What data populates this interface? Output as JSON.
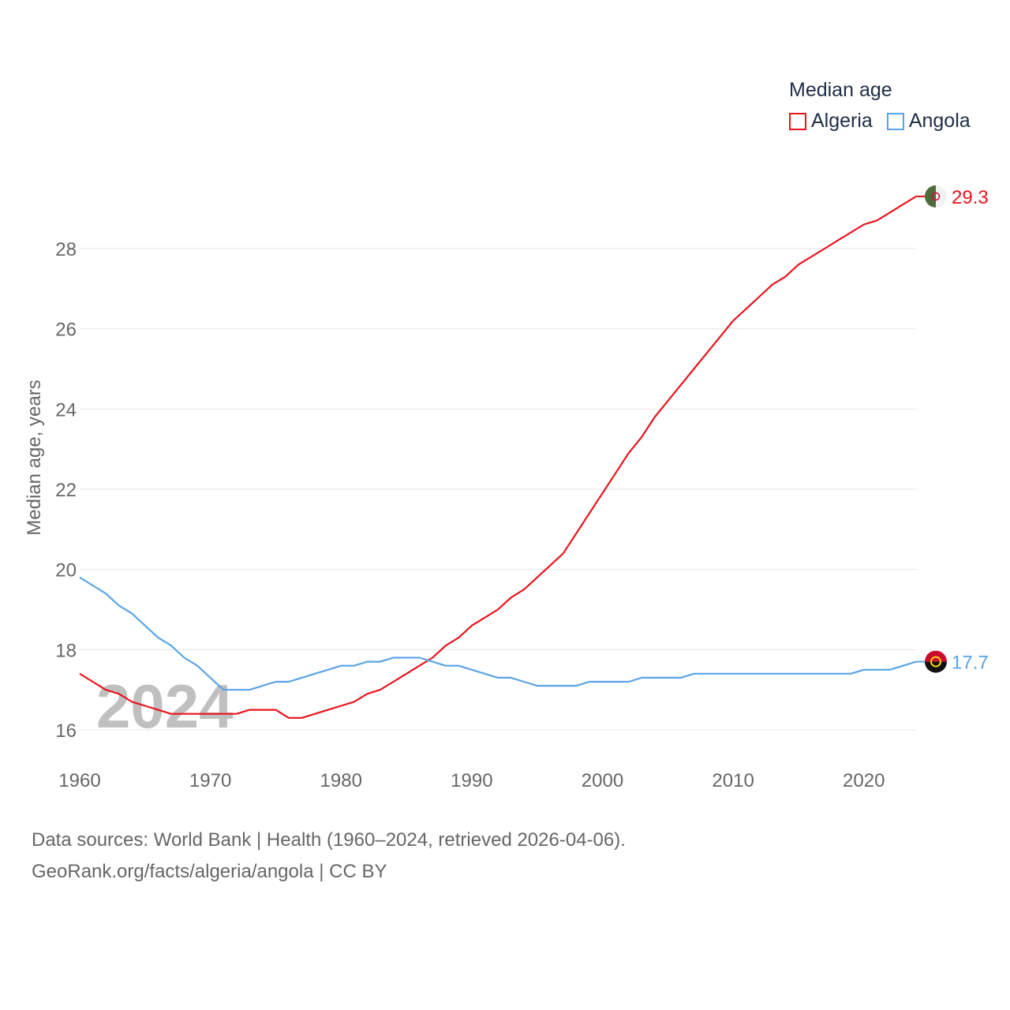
{
  "legend": {
    "title": "Median age",
    "items": [
      {
        "name": "Algeria",
        "color": "#e8141c"
      },
      {
        "name": "Angola",
        "color": "#5aa4e6"
      }
    ]
  },
  "footer": {
    "line1": "Data sources: World Bank | Health (1960–2024, retrieved 2026-04-06).",
    "line2": "GeoRank.org/facts/algeria/angola | CC BY"
  },
  "chart_data": {
    "type": "line",
    "title": "Median age",
    "ylabel": "Median age, years",
    "xlabel": "",
    "watermark": "2024",
    "xlim": [
      1960,
      2024
    ],
    "ylim": [
      15.3,
      29.6
    ],
    "xticks": [
      1960,
      1970,
      1980,
      1990,
      2000,
      2010,
      2020
    ],
    "yticks": [
      16,
      18,
      20,
      22,
      24,
      26,
      28
    ],
    "grid": true,
    "x": [
      1960,
      1961,
      1962,
      1963,
      1964,
      1965,
      1966,
      1967,
      1968,
      1969,
      1970,
      1971,
      1972,
      1973,
      1974,
      1975,
      1976,
      1977,
      1978,
      1979,
      1980,
      1981,
      1982,
      1983,
      1984,
      1985,
      1986,
      1987,
      1988,
      1989,
      1990,
      1991,
      1992,
      1993,
      1994,
      1995,
      1996,
      1997,
      1998,
      1999,
      2000,
      2001,
      2002,
      2003,
      2004,
      2005,
      2006,
      2007,
      2008,
      2009,
      2010,
      2011,
      2012,
      2013,
      2014,
      2015,
      2016,
      2017,
      2018,
      2019,
      2020,
      2021,
      2022,
      2023,
      2024
    ],
    "series": [
      {
        "name": "Algeria",
        "color": "#e8141c",
        "end_label": "29.3",
        "values": [
          17.4,
          17.2,
          17.0,
          16.9,
          16.7,
          16.6,
          16.5,
          16.4,
          16.4,
          16.4,
          16.4,
          16.4,
          16.4,
          16.5,
          16.5,
          16.5,
          16.3,
          16.3,
          16.4,
          16.5,
          16.6,
          16.7,
          16.9,
          17.0,
          17.2,
          17.4,
          17.6,
          17.8,
          18.1,
          18.3,
          18.6,
          18.8,
          19.0,
          19.3,
          19.5,
          19.8,
          20.1,
          20.4,
          20.9,
          21.4,
          21.9,
          22.4,
          22.9,
          23.3,
          23.8,
          24.2,
          24.6,
          25.0,
          25.4,
          25.8,
          26.2,
          26.5,
          26.8,
          27.1,
          27.3,
          27.6,
          27.8,
          28.0,
          28.2,
          28.4,
          28.6,
          28.7,
          28.9,
          29.1,
          29.3
        ]
      },
      {
        "name": "Angola",
        "color": "#5aa4e6",
        "end_label": "17.7",
        "values": [
          19.8,
          19.6,
          19.4,
          19.1,
          18.9,
          18.6,
          18.3,
          18.1,
          17.8,
          17.6,
          17.3,
          17.0,
          17.0,
          17.0,
          17.1,
          17.2,
          17.2,
          17.3,
          17.4,
          17.5,
          17.6,
          17.6,
          17.7,
          17.7,
          17.8,
          17.8,
          17.8,
          17.7,
          17.6,
          17.6,
          17.5,
          17.4,
          17.3,
          17.3,
          17.2,
          17.1,
          17.1,
          17.1,
          17.1,
          17.2,
          17.2,
          17.2,
          17.2,
          17.3,
          17.3,
          17.3,
          17.3,
          17.4,
          17.4,
          17.4,
          17.4,
          17.4,
          17.4,
          17.4,
          17.4,
          17.4,
          17.4,
          17.4,
          17.4,
          17.4,
          17.5,
          17.5,
          17.5,
          17.6,
          17.7
        ]
      }
    ]
  }
}
